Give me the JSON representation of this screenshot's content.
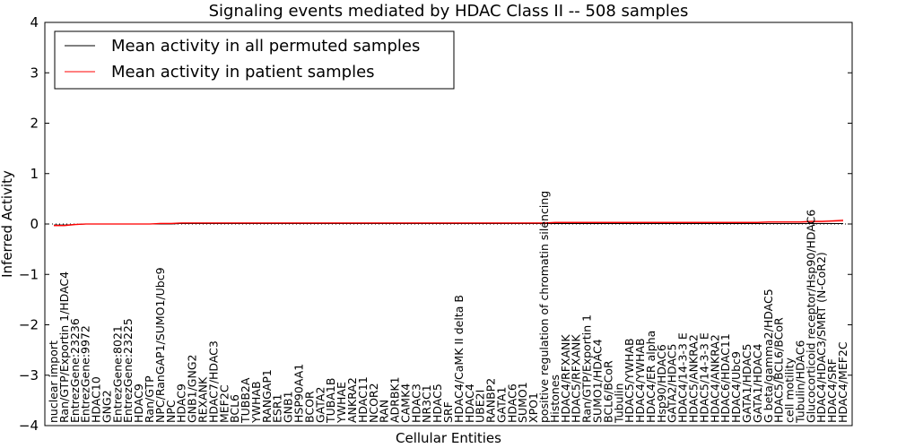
{
  "chart_data": {
    "type": "line",
    "title": "Signaling events mediated by HDAC Class II -- 508 samples",
    "xlabel": "Cellular Entities",
    "ylabel": "Inferred Activity",
    "ylim": [
      -4,
      4
    ],
    "yticks": [
      -4,
      -3,
      -2,
      -1,
      0,
      1,
      2,
      3,
      4
    ],
    "ytick_labels": [
      "−4",
      "−3",
      "−2",
      "−1",
      "0",
      "1",
      "2",
      "3",
      "4"
    ],
    "reference_line": 0,
    "legend": {
      "position": "top-left",
      "entries": [
        {
          "label": "Mean activity in all permuted samples",
          "color": "#000000"
        },
        {
          "label": "Mean activity in patient samples",
          "color": "#ff0000"
        }
      ]
    },
    "categories": [
      "nuclear import",
      "Ran/GTP/Exportin 1/HDAC4",
      "EntrezGene:23236",
      "EntrezGene:9972",
      "HDAC10",
      "GNG2",
      "EntrezGene:8021",
      "EntrezGene:23225",
      "HDAC9",
      "Ran/GTP",
      "NPC/RanGAP1/SUMO1/Ubc9",
      "NPC",
      "HDAC9",
      "GNB1/GNG2",
      "REXANK",
      "HDAC7/HDAC3",
      "MEF2C",
      "BCL6",
      "TUBB2A",
      "YWHAB",
      "RANGAP1",
      "ESR1",
      "GNB1",
      "HSP90AA1",
      "BCOR",
      "GATA2",
      "TUBA1B",
      "YWHAE",
      "ANKRA2",
      "HDAC11",
      "NCOR2",
      "RAN",
      "ADRBK1",
      "CAMK4",
      "HDAC3",
      "NR3C1",
      "HDAC5",
      "SRF",
      "HDAC4/CaMK II delta B",
      "HDAC4",
      "UBE2I",
      "RANBP2",
      "GATA1",
      "HDAC6",
      "SUMO1",
      "XPO1",
      "positive regulation of chromatin silencing",
      "Histones",
      "HDAC4/RFXANK",
      "HDAC5/RFXANK",
      "Ran/GTP/Exportin 1",
      "SUMO1/HDAC4",
      "BCL6/BCoR",
      "Tubulin",
      "HDAC5/YWHAB",
      "HDAC4/YWHAB",
      "HDAC4/ER alpha",
      "Hsp90/HDAC6",
      "GATA2/HDAC5",
      "HDAC4/14-3-3 E",
      "HDAC5/ANKRA2",
      "HDAC5/14-3-3 E",
      "HDAC4/ANKRA2",
      "HDAC6/HDAC11",
      "HDAC4/Ubc9",
      "GATA1/HDAC5",
      "GATA1/HDAC4",
      "G beta/gamma2/HDAC5",
      "HDAC5/BCL6/BCoR",
      "cell motility",
      "Tubulin/HDAC6",
      "Glucocorticoid receptor/Hsp90/HDAC6",
      "HDAC4/HDAC3/SMRT (N-CoR2)",
      "HDAC4/SRF",
      "HDAC4/MEF2C"
    ],
    "series": [
      {
        "name": "Mean activity in all permuted samples",
        "color": "#000000",
        "values": [
          -0.02,
          -0.02,
          -0.01,
          0,
          0,
          0,
          0,
          0,
          0,
          0,
          0,
          0,
          0.01,
          0.01,
          0.01,
          0.01,
          0.01,
          0.01,
          0.01,
          0.01,
          0.01,
          0.01,
          0.01,
          0.01,
          0.01,
          0.01,
          0.01,
          0.01,
          0.01,
          0.01,
          0.01,
          0.01,
          0.01,
          0.01,
          0.01,
          0.01,
          0.01,
          0.01,
          0.01,
          0.01,
          0.01,
          0.01,
          0.01,
          0.01,
          0.01,
          0.01,
          0.01,
          0.01,
          0.01,
          0.01,
          0.01,
          0.01,
          0.01,
          0.01,
          0.01,
          0.01,
          0.01,
          0.01,
          0.01,
          0.01,
          0.01,
          0.01,
          0.01,
          0.01,
          0.01,
          0.01,
          0.01,
          0.01,
          0.01,
          0.01,
          0.01,
          0.01,
          0.01,
          0.01,
          0.01
        ]
      },
      {
        "name": "Mean activity in patient samples",
        "color": "#ff0000",
        "values": [
          -0.03,
          -0.03,
          -0.01,
          0,
          0,
          0,
          0,
          0,
          0,
          0,
          0.01,
          0.01,
          0.02,
          0.02,
          0.02,
          0.02,
          0.02,
          0.02,
          0.02,
          0.02,
          0.02,
          0.02,
          0.02,
          0.02,
          0.02,
          0.02,
          0.02,
          0.02,
          0.02,
          0.02,
          0.02,
          0.02,
          0.02,
          0.02,
          0.02,
          0.02,
          0.02,
          0.02,
          0.02,
          0.02,
          0.02,
          0.02,
          0.02,
          0.02,
          0.02,
          0.02,
          0.02,
          0.03,
          0.03,
          0.03,
          0.03,
          0.03,
          0.03,
          0.03,
          0.03,
          0.03,
          0.03,
          0.03,
          0.03,
          0.03,
          0.03,
          0.03,
          0.03,
          0.03,
          0.03,
          0.03,
          0.03,
          0.04,
          0.04,
          0.04,
          0.04,
          0.05,
          0.05,
          0.06,
          0.07
        ]
      }
    ]
  }
}
